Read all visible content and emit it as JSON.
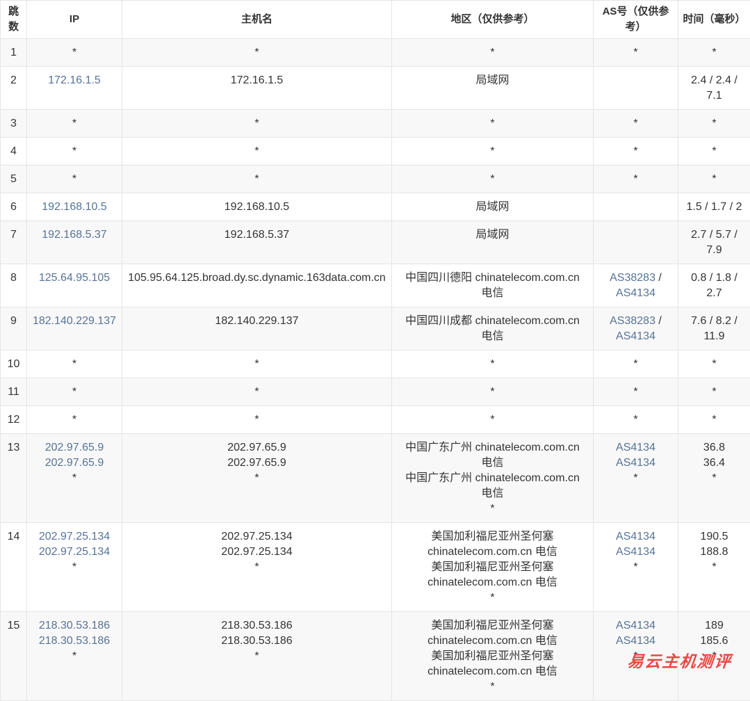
{
  "watermark": {
    "text": "易云主机测评",
    "color": "#ea4742"
  },
  "table": {
    "link_color": "#567397",
    "headers": [
      {
        "key": "hop",
        "label": "跳数"
      },
      {
        "key": "ip",
        "label": "IP"
      },
      {
        "key": "host",
        "label": "主机名"
      },
      {
        "key": "region",
        "label": "地区（仅供参考）"
      },
      {
        "key": "asn",
        "label": "AS号（仅供参考）"
      },
      {
        "key": "time",
        "label": "时间（毫秒）"
      }
    ],
    "rows": [
      {
        "hop": "1",
        "ip": [
          {
            "t": "*"
          }
        ],
        "host": [
          "*"
        ],
        "region": [
          "*"
        ],
        "asn": [
          [
            {
              "t": "*"
            }
          ]
        ],
        "time": [
          "*"
        ]
      },
      {
        "hop": "2",
        "ip": [
          {
            "t": "172.16.1.5",
            "link": true
          }
        ],
        "host": [
          "172.16.1.5"
        ],
        "region": [
          "局域网"
        ],
        "asn": [],
        "time": [
          "2.4 / 2.4 / 7.1"
        ]
      },
      {
        "hop": "3",
        "ip": [
          {
            "t": "*"
          }
        ],
        "host": [
          "*"
        ],
        "region": [
          "*"
        ],
        "asn": [
          [
            {
              "t": "*"
            }
          ]
        ],
        "time": [
          "*"
        ]
      },
      {
        "hop": "4",
        "ip": [
          {
            "t": "*"
          }
        ],
        "host": [
          "*"
        ],
        "region": [
          "*"
        ],
        "asn": [
          [
            {
              "t": "*"
            }
          ]
        ],
        "time": [
          "*"
        ]
      },
      {
        "hop": "5",
        "ip": [
          {
            "t": "*"
          }
        ],
        "host": [
          "*"
        ],
        "region": [
          "*"
        ],
        "asn": [
          [
            {
              "t": "*"
            }
          ]
        ],
        "time": [
          "*"
        ]
      },
      {
        "hop": "6",
        "ip": [
          {
            "t": "192.168.10.5",
            "link": true
          }
        ],
        "host": [
          "192.168.10.5"
        ],
        "region": [
          "局域网"
        ],
        "asn": [],
        "time": [
          "1.5 / 1.7 / 2"
        ]
      },
      {
        "hop": "7",
        "ip": [
          {
            "t": "192.168.5.37",
            "link": true
          }
        ],
        "host": [
          "192.168.5.37"
        ],
        "region": [
          "局域网"
        ],
        "asn": [],
        "time": [
          "2.7 / 5.7 / 7.9"
        ]
      },
      {
        "hop": "8",
        "ip": [
          {
            "t": "125.64.95.105",
            "link": true
          }
        ],
        "host": [
          "105.95.64.125.broad.dy.sc.dynamic.163data.com.cn"
        ],
        "region": [
          "中国四川德阳 chinatelecom.com.cn 电信"
        ],
        "asn": [
          [
            {
              "t": "AS38283",
              "link": true
            },
            {
              "t": " / "
            },
            {
              "t": "AS4134",
              "link": true
            }
          ]
        ],
        "time": [
          "0.8 / 1.8 / 2.7"
        ]
      },
      {
        "hop": "9",
        "ip": [
          {
            "t": "182.140.229.137",
            "link": true
          }
        ],
        "host": [
          "182.140.229.137"
        ],
        "region": [
          "中国四川成都 chinatelecom.com.cn 电信"
        ],
        "asn": [
          [
            {
              "t": "AS38283",
              "link": true
            },
            {
              "t": " / "
            },
            {
              "t": "AS4134",
              "link": true
            }
          ]
        ],
        "time": [
          "7.6 / 8.2 / 11.9"
        ]
      },
      {
        "hop": "10",
        "ip": [
          {
            "t": "*"
          }
        ],
        "host": [
          "*"
        ],
        "region": [
          "*"
        ],
        "asn": [
          [
            {
              "t": "*"
            }
          ]
        ],
        "time": [
          "*"
        ]
      },
      {
        "hop": "11",
        "ip": [
          {
            "t": "*"
          }
        ],
        "host": [
          "*"
        ],
        "region": [
          "*"
        ],
        "asn": [
          [
            {
              "t": "*"
            }
          ]
        ],
        "time": [
          "*"
        ]
      },
      {
        "hop": "12",
        "ip": [
          {
            "t": "*"
          }
        ],
        "host": [
          "*"
        ],
        "region": [
          "*"
        ],
        "asn": [
          [
            {
              "t": "*"
            }
          ]
        ],
        "time": [
          "*"
        ]
      },
      {
        "hop": "13",
        "ip": [
          {
            "t": "202.97.65.9",
            "link": true
          },
          {
            "t": "202.97.65.9",
            "link": true
          },
          {
            "t": "*"
          }
        ],
        "host": [
          "202.97.65.9",
          "202.97.65.9",
          "*"
        ],
        "region": [
          "中国广东广州 chinatelecom.com.cn 电信",
          "中国广东广州 chinatelecom.com.cn 电信",
          "*"
        ],
        "asn": [
          [
            {
              "t": "AS4134",
              "link": true
            }
          ],
          [
            {
              "t": "AS4134",
              "link": true
            }
          ],
          [
            {
              "t": "*"
            }
          ]
        ],
        "time": [
          "36.8",
          "36.4",
          "*"
        ]
      },
      {
        "hop": "14",
        "ip": [
          {
            "t": "202.97.25.134",
            "link": true
          },
          {
            "t": "202.97.25.134",
            "link": true
          },
          {
            "t": "*"
          }
        ],
        "host": [
          "202.97.25.134",
          "202.97.25.134",
          "*"
        ],
        "region": [
          "美国加利福尼亚州圣何塞 chinatelecom.com.cn 电信",
          "美国加利福尼亚州圣何塞 chinatelecom.com.cn 电信",
          "*"
        ],
        "asn": [
          [
            {
              "t": "AS4134",
              "link": true
            }
          ],
          [
            {
              "t": "AS4134",
              "link": true
            }
          ],
          [
            {
              "t": "*"
            }
          ]
        ],
        "time": [
          "190.5",
          "188.8",
          "*"
        ]
      },
      {
        "hop": "15",
        "ip": [
          {
            "t": "218.30.53.186",
            "link": true
          },
          {
            "t": "218.30.53.186",
            "link": true
          },
          {
            "t": "*"
          }
        ],
        "host": [
          "218.30.53.186",
          "218.30.53.186",
          "*"
        ],
        "region": [
          "美国加利福尼亚州圣何塞 chinatelecom.com.cn 电信",
          "美国加利福尼亚州圣何塞 chinatelecom.com.cn 电信",
          "*"
        ],
        "asn": [
          [
            {
              "t": "AS4134",
              "link": true
            }
          ],
          [
            {
              "t": "AS4134",
              "link": true
            }
          ],
          [
            {
              "t": "*"
            }
          ]
        ],
        "time": [
          "189",
          "185.6",
          "*"
        ]
      }
    ]
  }
}
